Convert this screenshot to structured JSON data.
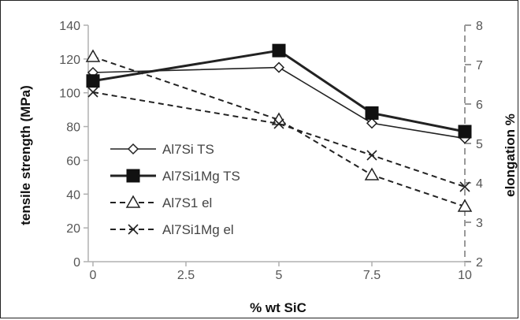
{
  "chart_data": {
    "type": "line",
    "xlabel": "% wt SiC",
    "ylabel": "tensile strength (MPa)",
    "y2label": "elongation %",
    "x_ticks": [
      "0",
      "2.5",
      "5",
      "7.5",
      "10"
    ],
    "y_ticks": [
      "0",
      "20",
      "40",
      "60",
      "80",
      "100",
      "120",
      "140"
    ],
    "y2_ticks": [
      "2",
      "3",
      "4",
      "5",
      "6",
      "7",
      "8"
    ],
    "xlim": [
      0,
      10
    ],
    "ylim": [
      0,
      140
    ],
    "y2lim": [
      2,
      8
    ],
    "x": [
      0,
      5,
      7.5,
      10
    ],
    "series": [
      {
        "name": "Al7Si TS",
        "axis": "left",
        "values": [
          112,
          115,
          82,
          73
        ],
        "marker": "diamond",
        "line": "solid",
        "weight": "thin"
      },
      {
        "name": "Al7Si1Mg TS",
        "axis": "left",
        "values": [
          107,
          125,
          88,
          77
        ],
        "marker": "square",
        "line": "solid",
        "weight": "thick"
      },
      {
        "name": "Al7S1 el",
        "axis": "right",
        "values": [
          7.2,
          5.6,
          4.2,
          3.4
        ],
        "marker": "triangle",
        "line": "dashed",
        "weight": "normal"
      },
      {
        "name": "Al7Si1Mg el",
        "axis": "right",
        "values": [
          6.3,
          5.5,
          4.7,
          3.9
        ],
        "marker": "x",
        "line": "dashed",
        "weight": "normal"
      }
    ],
    "grid": false,
    "legend_position": "bottom-left"
  }
}
